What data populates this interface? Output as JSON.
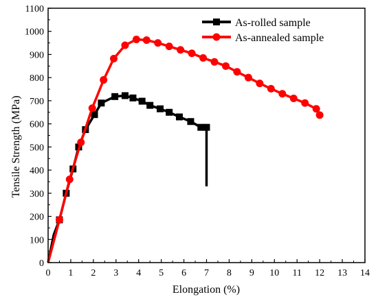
{
  "chart_data": {
    "type": "line",
    "xlabel": "Elongation (%)",
    "ylabel": "Tensile Strength (MPa)",
    "xlim": [
      0,
      14
    ],
    "ylim": [
      0,
      1100
    ],
    "xticks": [
      "0",
      "1",
      "2",
      "3",
      "4",
      "5",
      "6",
      "7",
      "8",
      "9",
      "10",
      "11",
      "12",
      "13",
      "14"
    ],
    "yticks": [
      "0",
      "100",
      "200",
      "300",
      "400",
      "500",
      "600",
      "700",
      "800",
      "900",
      "1000",
      "1100"
    ],
    "grid": false,
    "legend_position": "top-right",
    "series": [
      {
        "name": "As-rolled sample",
        "color": "#000000",
        "marker": "square",
        "x": [
          0,
          0.25,
          0.5,
          0.8,
          1.1,
          1.35,
          1.65,
          2.05,
          2.35,
          2.95,
          3.4,
          3.75,
          4.15,
          4.5,
          4.95,
          5.35,
          5.8,
          6.3,
          6.75,
          7.0,
          7.0
        ],
        "y": [
          0,
          120,
          185,
          300,
          405,
          500,
          575,
          640,
          690,
          718,
          722,
          712,
          698,
          680,
          665,
          650,
          630,
          610,
          585,
          585,
          330
        ],
        "marker_x": [
          0.5,
          0.8,
          1.1,
          1.35,
          1.65,
          2.05,
          2.35,
          2.95,
          3.4,
          3.75,
          4.15,
          4.5,
          4.95,
          5.35,
          5.8,
          6.3,
          6.75,
          7.0
        ],
        "marker_y": [
          185,
          300,
          405,
          500,
          575,
          640,
          690,
          718,
          722,
          712,
          698,
          680,
          665,
          650,
          630,
          610,
          585,
          585
        ]
      },
      {
        "name": "As-annealed sample",
        "color": "#ff0000",
        "marker": "circle",
        "x": [
          0,
          0.5,
          0.95,
          1.45,
          1.95,
          2.45,
          2.9,
          3.4,
          3.9,
          4.35,
          4.85,
          5.35,
          5.85,
          6.35,
          6.85,
          7.35,
          7.85,
          8.35,
          8.85,
          9.35,
          9.85,
          10.35,
          10.85,
          11.35,
          11.85,
          12.0
        ],
        "y": [
          0,
          185,
          360,
          520,
          668,
          790,
          882,
          940,
          965,
          962,
          950,
          935,
          920,
          905,
          885,
          868,
          850,
          825,
          800,
          775,
          752,
          730,
          710,
          690,
          665,
          638
        ],
        "marker_x": [
          0.5,
          0.95,
          1.45,
          1.95,
          2.45,
          2.9,
          3.4,
          3.9,
          4.35,
          4.85,
          5.35,
          5.85,
          6.35,
          6.85,
          7.35,
          7.85,
          8.35,
          8.85,
          9.35,
          9.85,
          10.35,
          10.85,
          11.35,
          11.85,
          12.0
        ],
        "marker_y": [
          185,
          360,
          520,
          668,
          790,
          882,
          940,
          965,
          962,
          950,
          935,
          920,
          905,
          885,
          868,
          850,
          825,
          800,
          775,
          752,
          730,
          710,
          690,
          665,
          638
        ]
      }
    ]
  }
}
